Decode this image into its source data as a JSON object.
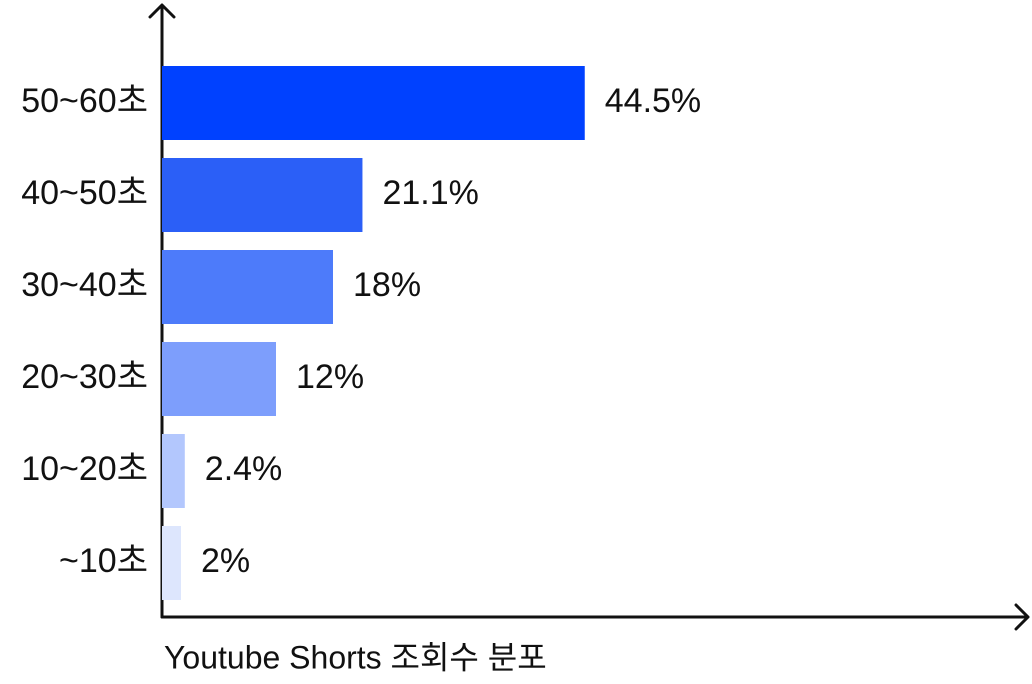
{
  "chart_data": {
    "type": "bar",
    "orientation": "horizontal",
    "title": "Youtube Shorts 조회수 분포",
    "categories": [
      "50~60초",
      "40~50초",
      "30~40초",
      "20~30초",
      "10~20초",
      "~10초"
    ],
    "values": [
      44.5,
      21.1,
      18,
      12,
      2.4,
      2
    ],
    "value_labels": [
      "44.5%",
      "21.1%",
      "18%",
      "12%",
      "2.4%",
      "2%"
    ],
    "colors": [
      "#0041ff",
      "#2b5ff7",
      "#4d7bfa",
      "#7d9efc",
      "#b3c7fd",
      "#dde6fd"
    ]
  }
}
